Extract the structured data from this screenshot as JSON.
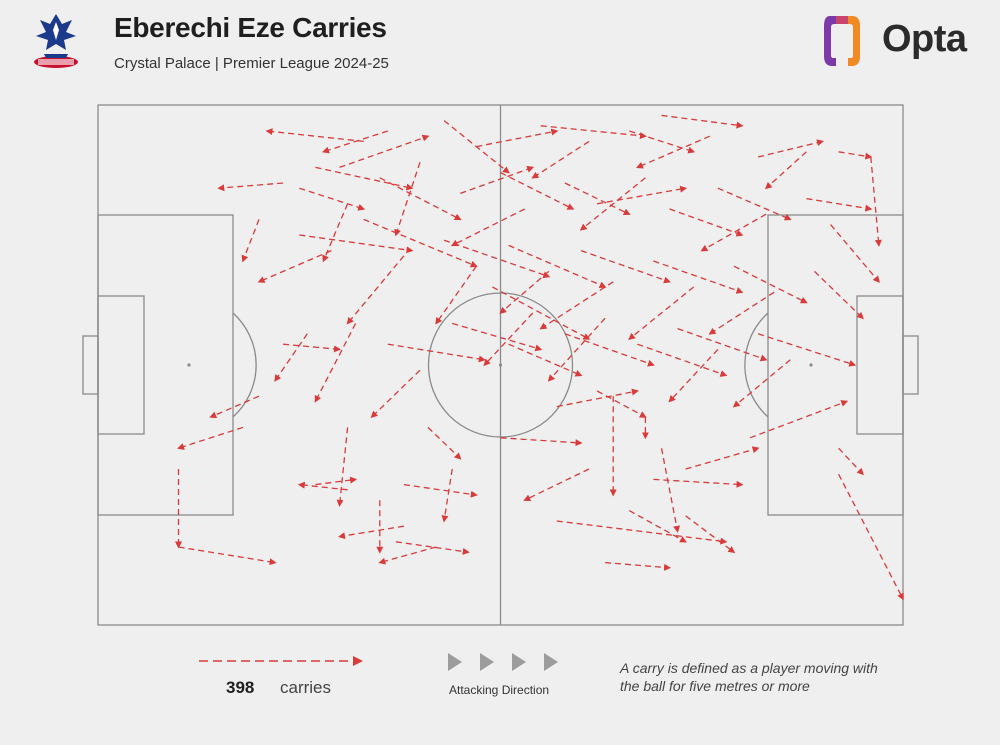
{
  "header": {
    "title": "Eberechi Eze Carries",
    "subtitle": "Crystal Palace | Premier League 2024-25",
    "club_crest_icon": "crystal-palace-crest-icon",
    "brand_name": "Opta",
    "brand_icon": "opta-logo-icon"
  },
  "colors": {
    "background": "#efefef",
    "pitch_line": "#8a8a8a",
    "carry": "#d93a3a",
    "direction_arrow": "#9c9c9c",
    "opta_orange": "#f08a24",
    "opta_purple": "#7b3aa8"
  },
  "legend": {
    "count": "398",
    "unit_label": "carries",
    "direction_label": "Attacking Direction",
    "definition": "A carry is defined as a player moving with the ball for five metres or more"
  },
  "chart_data": {
    "type": "pitch-arrows",
    "title": "Eberechi Eze Carries",
    "subtitle": "Crystal Palace | Premier League 2024-25",
    "pitch_length": 100,
    "pitch_width": 100,
    "attacking_direction": "left-to-right",
    "total_carries": 398,
    "note": "Representative subset of carries (start x,y → end x,y in pitch % coordinates); y measured from top touchline",
    "carries": [
      [
        33,
        7,
        21,
        5
      ],
      [
        36,
        5,
        28,
        9
      ],
      [
        30,
        12,
        41,
        6
      ],
      [
        25,
        16,
        33,
        20
      ],
      [
        43,
        3,
        51,
        13
      ],
      [
        47,
        8,
        57,
        5
      ],
      [
        55,
        4,
        68,
        6
      ],
      [
        61,
        7,
        54,
        14
      ],
      [
        66,
        5,
        74,
        9
      ],
      [
        70,
        2,
        80,
        4
      ],
      [
        76,
        6,
        67,
        12
      ],
      [
        82,
        10,
        90,
        7
      ],
      [
        88,
        9,
        83,
        16
      ],
      [
        92,
        9,
        96,
        10
      ],
      [
        96,
        10,
        97,
        27
      ],
      [
        23,
        15,
        15,
        16
      ],
      [
        27,
        12,
        39,
        16
      ],
      [
        31,
        19,
        28,
        30
      ],
      [
        35,
        14,
        45,
        22
      ],
      [
        40,
        11,
        37,
        25
      ],
      [
        45,
        17,
        54,
        12
      ],
      [
        50,
        13,
        59,
        20
      ],
      [
        53,
        20,
        44,
        27
      ],
      [
        58,
        15,
        66,
        21
      ],
      [
        62,
        19,
        73,
        16
      ],
      [
        68,
        14,
        60,
        24
      ],
      [
        71,
        20,
        80,
        25
      ],
      [
        77,
        16,
        86,
        22
      ],
      [
        83,
        21,
        75,
        28
      ],
      [
        88,
        18,
        96,
        20
      ],
      [
        91,
        23,
        97,
        34
      ],
      [
        20,
        22,
        18,
        30
      ],
      [
        25,
        25,
        39,
        28
      ],
      [
        29,
        28,
        20,
        34
      ],
      [
        33,
        22,
        47,
        31
      ],
      [
        38,
        29,
        31,
        42
      ],
      [
        43,
        26,
        56,
        33
      ],
      [
        47,
        31,
        42,
        42
      ],
      [
        51,
        27,
        63,
        35
      ],
      [
        56,
        32,
        50,
        40
      ],
      [
        60,
        28,
        71,
        34
      ],
      [
        64,
        34,
        55,
        43
      ],
      [
        69,
        30,
        80,
        36
      ],
      [
        74,
        35,
        66,
        45
      ],
      [
        79,
        31,
        88,
        38
      ],
      [
        84,
        36,
        76,
        44
      ],
      [
        89,
        32,
        95,
        41
      ],
      [
        49,
        35,
        61,
        45
      ],
      [
        54,
        40,
        48,
        50
      ],
      [
        58,
        44,
        69,
        50
      ],
      [
        63,
        41,
        56,
        53
      ],
      [
        67,
        46,
        78,
        52
      ],
      [
        72,
        43,
        83,
        49
      ],
      [
        77,
        47,
        71,
        57
      ],
      [
        82,
        44,
        94,
        50
      ],
      [
        86,
        49,
        79,
        58
      ],
      [
        44,
        42,
        55,
        47
      ],
      [
        36,
        46,
        48,
        49
      ],
      [
        40,
        51,
        34,
        60
      ],
      [
        32,
        42,
        27,
        57
      ],
      [
        26,
        44,
        22,
        53
      ],
      [
        23,
        46,
        30,
        47
      ],
      [
        20,
        56,
        14,
        60
      ],
      [
        18,
        62,
        10,
        66
      ],
      [
        10,
        70,
        10,
        85
      ],
      [
        10,
        85,
        22,
        88
      ],
      [
        51,
        46,
        60,
        52
      ],
      [
        62,
        55,
        68,
        60
      ],
      [
        64,
        56,
        64,
        75
      ],
      [
        57,
        58,
        67,
        55
      ],
      [
        50,
        64,
        60,
        65
      ],
      [
        61,
        70,
        53,
        76
      ],
      [
        68,
        60,
        68,
        64
      ],
      [
        70,
        66,
        72,
        82
      ],
      [
        73,
        70,
        82,
        66
      ],
      [
        69,
        72,
        80,
        73
      ],
      [
        66,
        78,
        73,
        84
      ],
      [
        73,
        79,
        79,
        86
      ],
      [
        57,
        80,
        78,
        84
      ],
      [
        63,
        88,
        71,
        89
      ],
      [
        81,
        64,
        93,
        57
      ],
      [
        92,
        66,
        95,
        71
      ],
      [
        92,
        71,
        100,
        95
      ],
      [
        41,
        62,
        45,
        68
      ],
      [
        44,
        70,
        43,
        80
      ],
      [
        38,
        73,
        47,
        75
      ],
      [
        37,
        84,
        46,
        86
      ],
      [
        42,
        85,
        35,
        88
      ],
      [
        38,
        81,
        30,
        83
      ],
      [
        35,
        76,
        35,
        86
      ],
      [
        31,
        62,
        30,
        77
      ],
      [
        27,
        73,
        32,
        72
      ],
      [
        31,
        74,
        25,
        73
      ]
    ]
  }
}
